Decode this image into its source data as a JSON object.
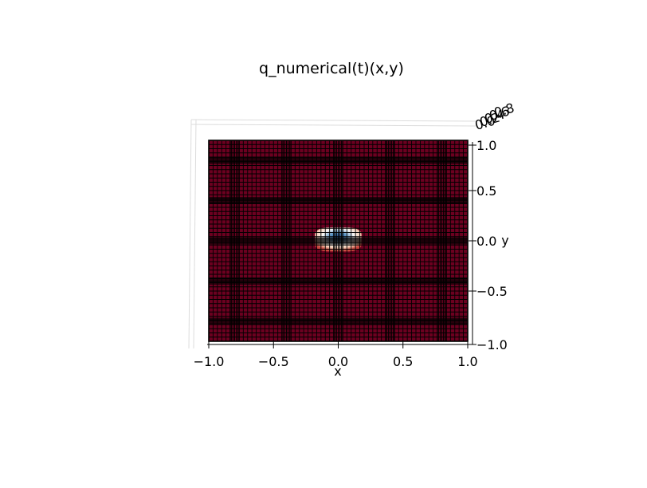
{
  "chart_data": {
    "type": "surface3d",
    "title": "q_numerical(t)(x,y)",
    "xlabel": "x",
    "ylabel": "y",
    "xlim": [
      -1.0,
      1.0
    ],
    "ylim": [
      -1.0,
      1.0
    ],
    "zlim": [
      0.0,
      0.8
    ],
    "x_ticks": [
      "−1.0",
      "−0.5",
      "0.0",
      "0.5",
      "1.0"
    ],
    "y_ticks": [
      "−1.0",
      "−0.5",
      "0.0",
      "0.5",
      "1.0"
    ],
    "z_ticks": [
      "0.0",
      "0.2",
      "0.4",
      "0.6",
      "0.8"
    ],
    "view": "top-down",
    "colormap": "RdBu",
    "background_color": "#6c0020",
    "mesh_color": "#000000",
    "grid": true,
    "feature": {
      "center": [
        0.0,
        0.0
      ],
      "half_width": [
        0.18,
        0.1
      ]
    }
  }
}
